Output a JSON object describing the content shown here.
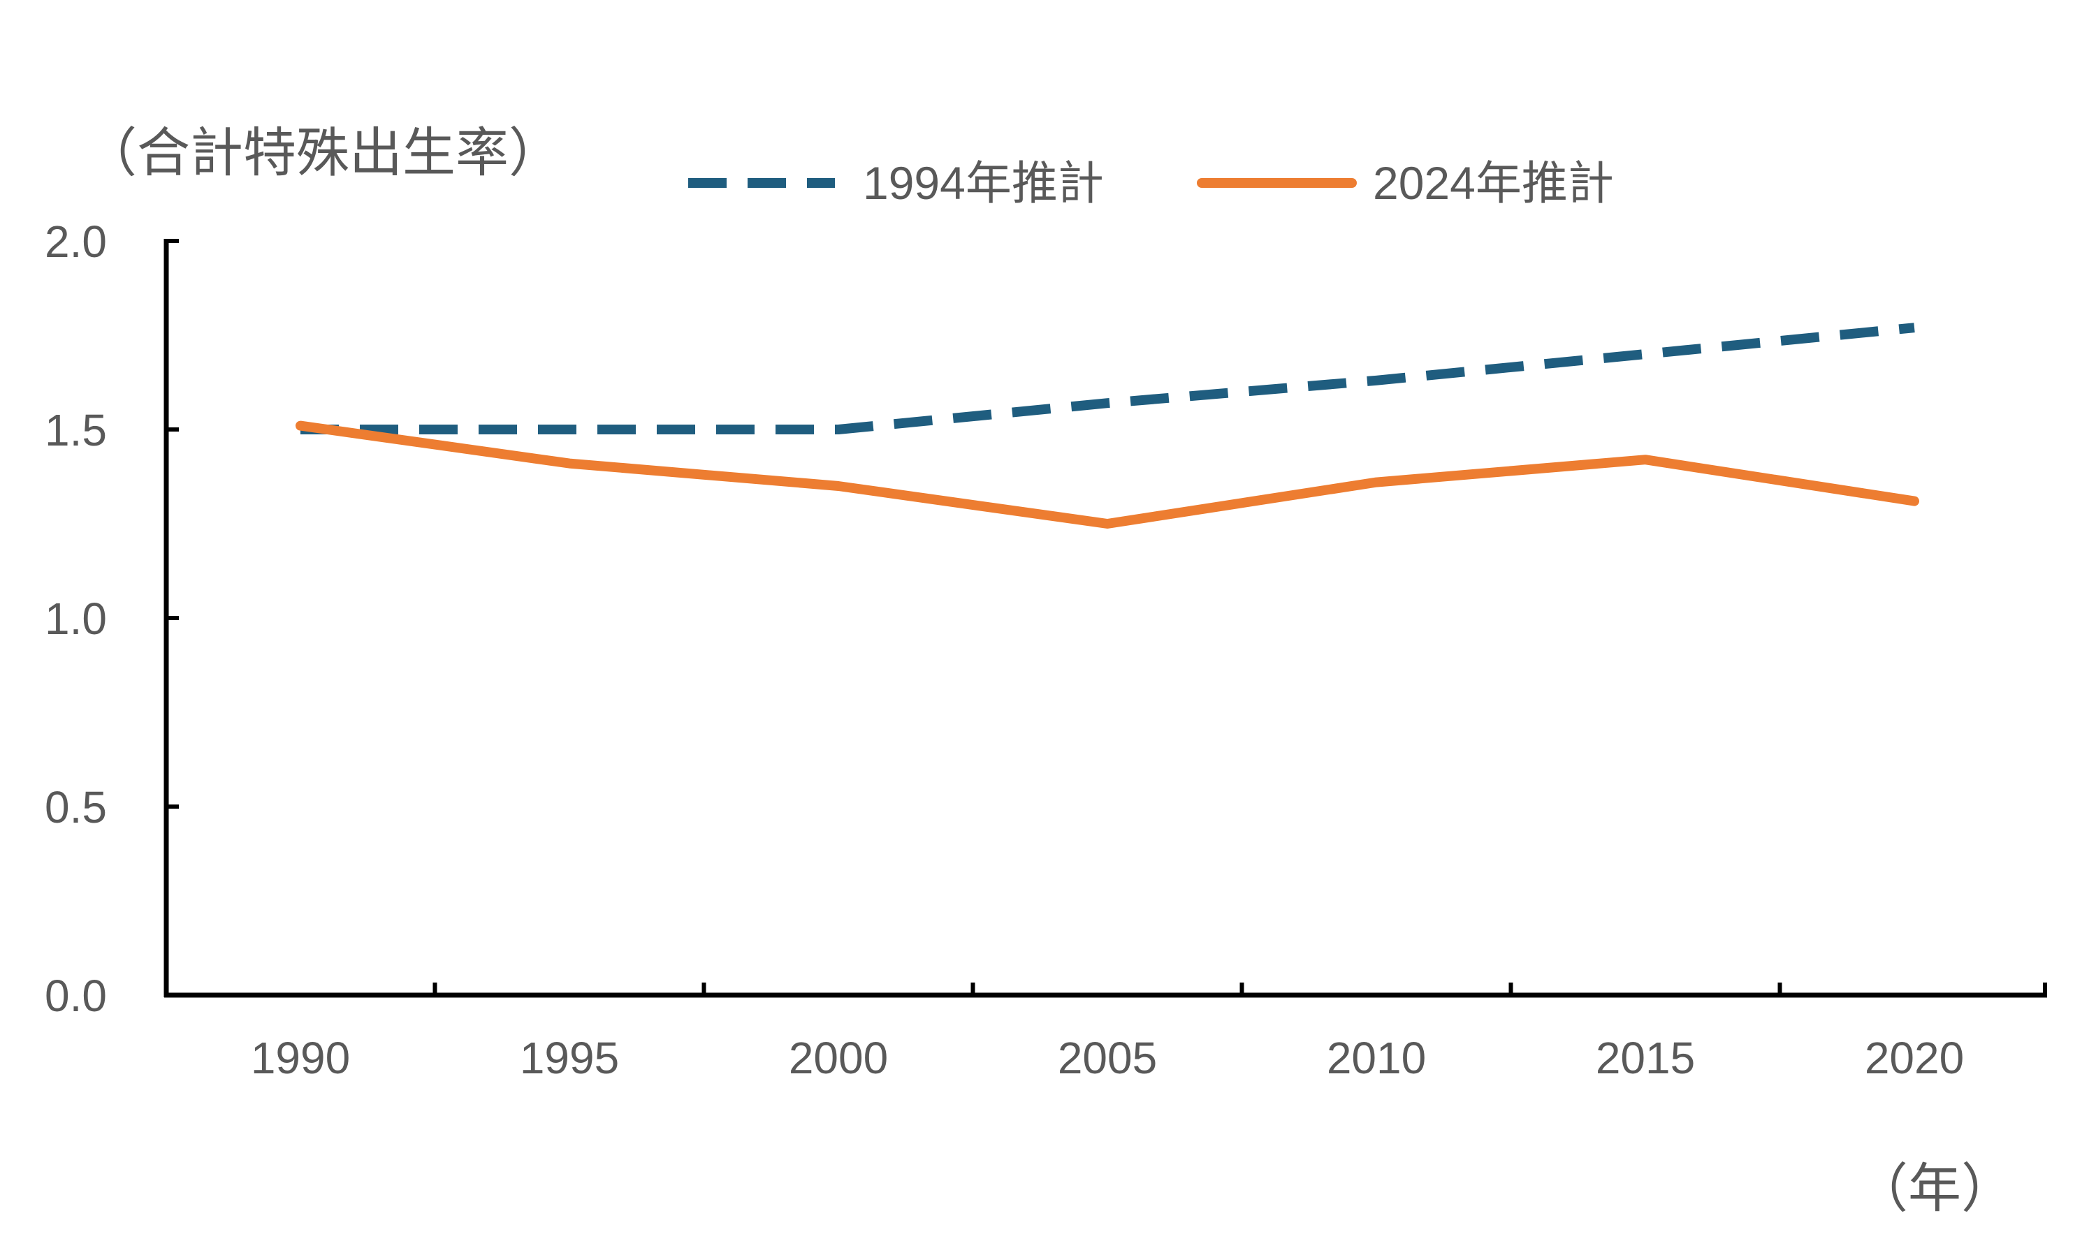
{
  "chart_data": {
    "type": "line",
    "ylabel": "（合計特殊出生率）",
    "xunit": "（年）",
    "x": [
      1990,
      1995,
      2000,
      2005,
      2010,
      2015,
      2020
    ],
    "ylim": [
      0,
      2.0
    ],
    "yticks": [
      "0.0",
      "0.5",
      "1.0",
      "1.5",
      "2.0"
    ],
    "xtick_labels": [
      "1990",
      "1995",
      "2000",
      "2005",
      "2010",
      "2015",
      "2020"
    ],
    "grid": false,
    "legend_position": "top",
    "series": [
      {
        "name": "1994年推計",
        "color": "#1F5D7F",
        "style": "dashed",
        "values": [
          1.5,
          1.5,
          1.5,
          1.57,
          1.63,
          1.7,
          1.77
        ]
      },
      {
        "name": "2024年推計",
        "color": "#ED7D31",
        "style": "solid",
        "values": [
          1.51,
          1.41,
          1.35,
          1.25,
          1.36,
          1.42,
          1.31
        ]
      }
    ]
  }
}
